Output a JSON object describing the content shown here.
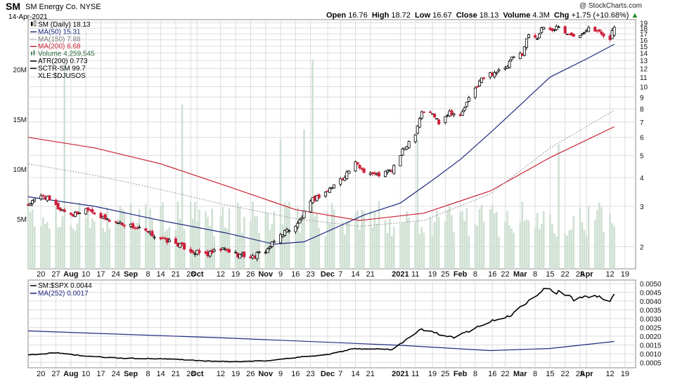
{
  "header": {
    "symbol": "SM",
    "name": "SM Energy Co. NYSE",
    "date": "14-Apr-2021",
    "open_label": "Open",
    "open": "16.76",
    "high_label": "High",
    "high": "18.72",
    "low_label": "Low",
    "low": "16.67",
    "close_label": "Close",
    "close": "18.13",
    "volume_label": "Volume",
    "volume": "4.3M",
    "chg_label": "Chg",
    "chg": "+1.75 (+10.68%)",
    "credit": "@ StockCharts.com"
  },
  "legend_main": [
    {
      "text": "SM (Daily) 18.13",
      "color": "#000000",
      "style": "candle"
    },
    {
      "text": "MA(50) 15.31",
      "color": "#1f2a80",
      "style": "line"
    },
    {
      "text": "MA(150) 7.88",
      "color": "#888888",
      "style": "dotted"
    },
    {
      "text": "MA(200) 6.68",
      "color": "#cc2233",
      "style": "line"
    },
    {
      "text": "Volume 4,259,545",
      "color": "#4a8a5a",
      "style": "bars"
    },
    {
      "text": "ATR(200) 0.773",
      "color": "#000000",
      "style": "line"
    },
    {
      "text": "SCTR-SM 99.7",
      "color": "#000000",
      "style": "line"
    },
    {
      "text": "XLE:$DJUSOS",
      "color": "#000000",
      "style": "none"
    }
  ],
  "legend_lower": [
    {
      "text": "SM:$SPX 0.0044",
      "color": "#000000"
    },
    {
      "text": "MA(252) 0.0017",
      "color": "#1f2a80"
    }
  ],
  "colors": {
    "up": "#000000",
    "down": "#cc1f3a",
    "ma50": "#1f2a80",
    "ma150": "#999999",
    "ma200": "#cc2233",
    "volume": "#cfe0d3",
    "ratio": "#000000",
    "ma252": "#1f2a80",
    "grid": "#dcdcdc"
  },
  "chart_data": [
    {
      "type": "candlestick",
      "title": "SM (Daily)",
      "y_scale": "log",
      "ylim": [
        1.6,
        19.6
      ],
      "y_ticks": [
        2,
        3,
        4,
        5,
        6,
        7,
        8,
        9,
        10,
        11,
        12,
        13,
        14,
        15,
        16,
        17,
        18,
        19
      ],
      "x_ticks": [
        {
          "date": "2020-07-20",
          "label": "20"
        },
        {
          "date": "2020-07-27",
          "label": "27"
        },
        {
          "date": "2020-08-03",
          "label": "Aug",
          "bold": true
        },
        {
          "date": "2020-08-10",
          "label": "10"
        },
        {
          "date": "2020-08-17",
          "label": "17"
        },
        {
          "date": "2020-08-24",
          "label": "24"
        },
        {
          "date": "2020-08-31",
          "label": "Sep",
          "bold": true
        },
        {
          "date": "2020-09-08",
          "label": "8"
        },
        {
          "date": "2020-09-14",
          "label": "14"
        },
        {
          "date": "2020-09-21",
          "label": "21"
        },
        {
          "date": "2020-09-28",
          "label": "28"
        },
        {
          "date": "2020-10-01",
          "label": "Oct",
          "bold": true
        },
        {
          "date": "2020-10-12",
          "label": "12"
        },
        {
          "date": "2020-10-19",
          "label": "19"
        },
        {
          "date": "2020-10-26",
          "label": "26"
        },
        {
          "date": "2020-11-02",
          "label": "Nov",
          "bold": true
        },
        {
          "date": "2020-11-09",
          "label": "9"
        },
        {
          "date": "2020-11-16",
          "label": "16"
        },
        {
          "date": "2020-11-23",
          "label": "23"
        },
        {
          "date": "2020-12-01",
          "label": "Dec",
          "bold": true
        },
        {
          "date": "2020-12-07",
          "label": "7"
        },
        {
          "date": "2020-12-14",
          "label": "14"
        },
        {
          "date": "2020-12-21",
          "label": "21"
        },
        {
          "date": "2021-01-04",
          "label": "2021",
          "bold": true
        },
        {
          "date": "2021-01-11",
          "label": "11"
        },
        {
          "date": "2021-01-19",
          "label": "19"
        },
        {
          "date": "2021-01-25",
          "label": "25"
        },
        {
          "date": "2021-02-01",
          "label": "Feb",
          "bold": true
        },
        {
          "date": "2021-02-08",
          "label": "8"
        },
        {
          "date": "2021-02-16",
          "label": "16"
        },
        {
          "date": "2021-02-22",
          "label": "22"
        },
        {
          "date": "2021-03-01",
          "label": "Mar",
          "bold": true
        },
        {
          "date": "2021-03-08",
          "label": "8"
        },
        {
          "date": "2021-03-15",
          "label": "15"
        },
        {
          "date": "2021-03-22",
          "label": "22"
        },
        {
          "date": "2021-03-29",
          "label": "29"
        },
        {
          "date": "2021-04-01",
          "label": "Apr",
          "bold": true
        },
        {
          "date": "2021-04-12",
          "label": "12"
        },
        {
          "date": "2021-04-19",
          "label": "19"
        }
      ],
      "close_series": [
        {
          "date": "2020-07-14",
          "close": 3.05
        },
        {
          "date": "2020-07-21",
          "close": 3.35
        },
        {
          "date": "2020-07-28",
          "close": 2.95
        },
        {
          "date": "2020-08-04",
          "close": 2.75
        },
        {
          "date": "2020-08-11",
          "close": 2.95
        },
        {
          "date": "2020-08-18",
          "close": 2.65
        },
        {
          "date": "2020-08-25",
          "close": 2.55
        },
        {
          "date": "2020-09-01",
          "close": 2.45
        },
        {
          "date": "2020-09-08",
          "close": 2.3
        },
        {
          "date": "2020-09-15",
          "close": 2.15
        },
        {
          "date": "2020-09-22",
          "close": 2.05
        },
        {
          "date": "2020-09-29",
          "close": 1.9
        },
        {
          "date": "2020-10-06",
          "close": 1.85
        },
        {
          "date": "2020-10-13",
          "close": 1.95
        },
        {
          "date": "2020-10-20",
          "close": 1.85
        },
        {
          "date": "2020-10-27",
          "close": 1.8
        },
        {
          "date": "2020-11-03",
          "close": 1.95
        },
        {
          "date": "2020-11-10",
          "close": 2.3
        },
        {
          "date": "2020-11-17",
          "close": 2.5
        },
        {
          "date": "2020-11-24",
          "close": 3.2
        },
        {
          "date": "2020-12-01",
          "close": 3.5
        },
        {
          "date": "2020-12-08",
          "close": 4.0
        },
        {
          "date": "2020-12-14",
          "close": 4.6
        },
        {
          "date": "2020-12-18",
          "close": 4.3
        },
        {
          "date": "2020-12-24",
          "close": 4.1
        },
        {
          "date": "2020-12-31",
          "close": 4.3
        },
        {
          "date": "2021-01-06",
          "close": 5.4
        },
        {
          "date": "2021-01-11",
          "close": 6.3
        },
        {
          "date": "2021-01-14",
          "close": 7.8
        },
        {
          "date": "2021-01-19",
          "close": 7.6
        },
        {
          "date": "2021-01-22",
          "close": 7.0
        },
        {
          "date": "2021-01-27",
          "close": 7.8
        },
        {
          "date": "2021-02-01",
          "close": 7.4
        },
        {
          "date": "2021-02-05",
          "close": 8.8
        },
        {
          "date": "2021-02-11",
          "close": 10.8
        },
        {
          "date": "2021-02-17",
          "close": 11.6
        },
        {
          "date": "2021-02-22",
          "close": 11.8
        },
        {
          "date": "2021-02-25",
          "close": 13.2
        },
        {
          "date": "2021-03-02",
          "close": 14.0
        },
        {
          "date": "2021-03-05",
          "close": 17.0
        },
        {
          "date": "2021-03-09",
          "close": 16.5
        },
        {
          "date": "2021-03-12",
          "close": 18.2
        },
        {
          "date": "2021-03-16",
          "close": 17.6
        },
        {
          "date": "2021-03-19",
          "close": 18.5
        },
        {
          "date": "2021-03-23",
          "close": 16.8
        },
        {
          "date": "2021-03-26",
          "close": 16.9
        },
        {
          "date": "2021-03-30",
          "close": 17.2
        },
        {
          "date": "2021-04-02",
          "close": 18.4
        },
        {
          "date": "2021-04-07",
          "close": 17.2
        },
        {
          "date": "2021-04-12",
          "close": 16.4
        },
        {
          "date": "2021-04-14",
          "close": 18.13
        }
      ],
      "ma50": [
        {
          "date": "2020-07-14",
          "value": 3.3
        },
        {
          "date": "2020-08-14",
          "value": 3.0
        },
        {
          "date": "2020-09-14",
          "value": 2.6
        },
        {
          "date": "2020-10-14",
          "value": 2.3
        },
        {
          "date": "2020-11-06",
          "value": 2.05
        },
        {
          "date": "2020-11-20",
          "value": 2.1
        },
        {
          "date": "2020-12-04",
          "value": 2.4
        },
        {
          "date": "2020-12-18",
          "value": 2.75
        },
        {
          "date": "2021-01-04",
          "value": 3.1
        },
        {
          "date": "2021-01-19",
          "value": 3.9
        },
        {
          "date": "2021-02-01",
          "value": 4.8
        },
        {
          "date": "2021-02-16",
          "value": 6.4
        },
        {
          "date": "2021-03-01",
          "value": 8.3
        },
        {
          "date": "2021-03-15",
          "value": 11.0
        },
        {
          "date": "2021-04-01",
          "value": 13.2
        },
        {
          "date": "2021-04-14",
          "value": 15.31
        }
      ],
      "ma150": [
        {
          "date": "2020-07-14",
          "value": 4.6
        },
        {
          "date": "2020-08-14",
          "value": 4.1
        },
        {
          "date": "2020-09-14",
          "value": 3.55
        },
        {
          "date": "2020-10-14",
          "value": 3.05
        },
        {
          "date": "2020-11-16",
          "value": 2.65
        },
        {
          "date": "2020-12-16",
          "value": 2.45
        },
        {
          "date": "2021-01-15",
          "value": 2.6
        },
        {
          "date": "2021-02-15",
          "value": 3.4
        },
        {
          "date": "2021-03-15",
          "value": 5.4
        },
        {
          "date": "2021-04-14",
          "value": 7.88
        }
      ],
      "ma200": [
        {
          "date": "2020-07-14",
          "value": 6.0
        },
        {
          "date": "2020-08-14",
          "value": 5.4
        },
        {
          "date": "2020-09-14",
          "value": 4.6
        },
        {
          "date": "2020-10-14",
          "value": 3.7
        },
        {
          "date": "2020-11-16",
          "value": 2.9
        },
        {
          "date": "2020-12-16",
          "value": 2.6
        },
        {
          "date": "2021-01-15",
          "value": 2.8
        },
        {
          "date": "2021-02-15",
          "value": 3.5
        },
        {
          "date": "2021-03-15",
          "value": 4.9
        },
        {
          "date": "2021-04-14",
          "value": 6.68
        }
      ]
    },
    {
      "type": "bar",
      "title": "Volume",
      "ylim": [
        0,
        25000000
      ],
      "y_ticks": [
        {
          "value": 5000000,
          "label": "5M"
        },
        {
          "value": 10000000,
          "label": "10M"
        },
        {
          "value": 15000000,
          "label": "15M"
        },
        {
          "value": 20000000,
          "label": "20M"
        }
      ],
      "spikes": [
        {
          "date": "2020-07-31",
          "value": 21000000
        },
        {
          "date": "2020-09-24",
          "value": 16500000
        },
        {
          "date": "2020-11-09",
          "value": 13000000
        },
        {
          "date": "2020-11-20",
          "value": 14000000
        },
        {
          "date": "2020-11-24",
          "value": 21000000
        },
        {
          "date": "2021-01-12",
          "value": 13000000
        },
        {
          "date": "2021-03-19",
          "value": 12500000
        }
      ],
      "last": {
        "date": "2021-04-14",
        "value": 4259545
      }
    },
    {
      "type": "line",
      "title": "SM:$SPX",
      "ylim": [
        0.0002,
        0.0052
      ],
      "y_ticks": [
        0.0005,
        0.001,
        0.0015,
        0.002,
        0.0025,
        0.003,
        0.0035,
        0.004,
        0.0045,
        0.005
      ],
      "y_tick_labels": [
        "0.0005",
        "0.0010",
        "0.0015",
        "0.0020",
        "0.0025",
        "0.0030",
        "0.0035",
        "0.0040",
        "0.0045",
        "0.0050"
      ],
      "series": [
        {
          "date": "2020-07-14",
          "value": 0.00095
        },
        {
          "date": "2020-07-28",
          "value": 0.00105
        },
        {
          "date": "2020-08-11",
          "value": 0.00085
        },
        {
          "date": "2020-08-25",
          "value": 0.00075
        },
        {
          "date": "2020-09-08",
          "value": 0.00072
        },
        {
          "date": "2020-09-22",
          "value": 0.00068
        },
        {
          "date": "2020-10-06",
          "value": 0.00058
        },
        {
          "date": "2020-10-20",
          "value": 0.00055
        },
        {
          "date": "2020-11-03",
          "value": 0.0006
        },
        {
          "date": "2020-11-17",
          "value": 0.0008
        },
        {
          "date": "2020-12-01",
          "value": 0.00095
        },
        {
          "date": "2020-12-14",
          "value": 0.0013
        },
        {
          "date": "2020-12-31",
          "value": 0.00125
        },
        {
          "date": "2021-01-14",
          "value": 0.0024
        },
        {
          "date": "2021-01-29",
          "value": 0.0019
        },
        {
          "date": "2021-02-12",
          "value": 0.0027
        },
        {
          "date": "2021-02-25",
          "value": 0.0032
        },
        {
          "date": "2021-03-05",
          "value": 0.0041
        },
        {
          "date": "2021-03-12",
          "value": 0.0047
        },
        {
          "date": "2021-03-19",
          "value": 0.0045
        },
        {
          "date": "2021-03-26",
          "value": 0.0041
        },
        {
          "date": "2021-04-05",
          "value": 0.0044
        },
        {
          "date": "2021-04-12",
          "value": 0.004
        },
        {
          "date": "2021-04-14",
          "value": 0.0044
        }
      ],
      "ma252": [
        {
          "date": "2020-07-14",
          "value": 0.0023
        },
        {
          "date": "2020-10-14",
          "value": 0.0019
        },
        {
          "date": "2021-01-04",
          "value": 0.00148
        },
        {
          "date": "2021-02-15",
          "value": 0.00118
        },
        {
          "date": "2021-03-15",
          "value": 0.0013
        },
        {
          "date": "2021-04-14",
          "value": 0.0017
        }
      ]
    }
  ]
}
